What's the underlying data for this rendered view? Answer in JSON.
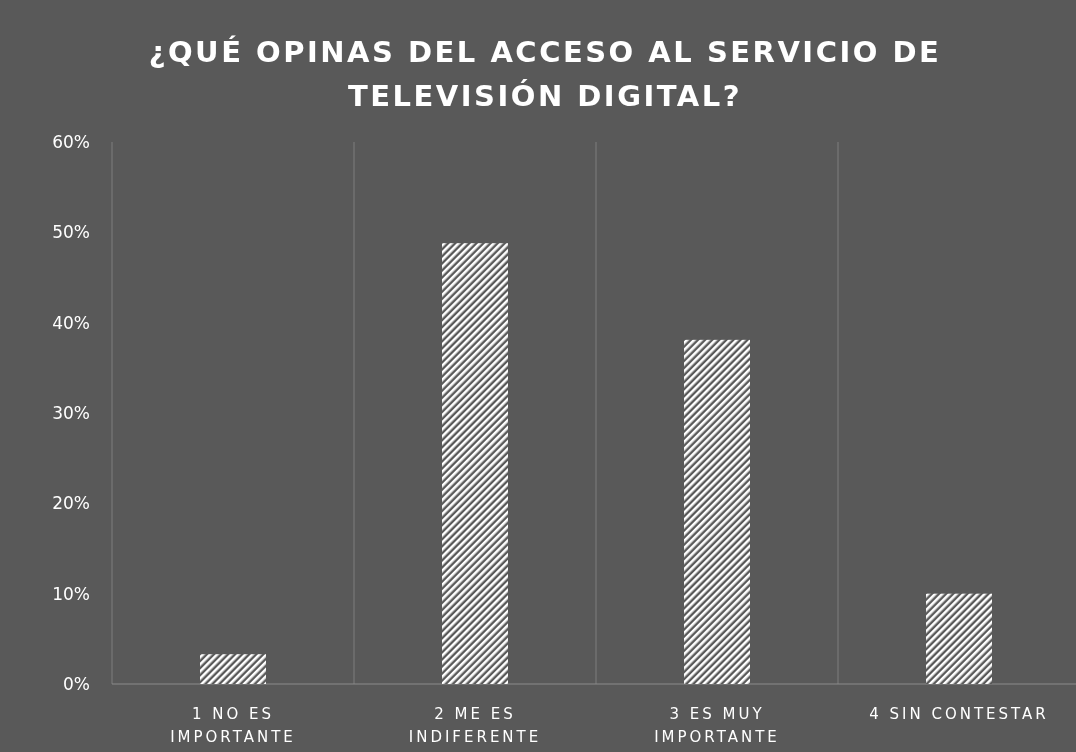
{
  "chart_data": {
    "type": "bar",
    "title": "¿QUÉ OPINAS DEL  ACCESO AL SERVICIO DE TELEVISIÓN DIGITAL?",
    "categories": [
      "1 NO ES IMPORTANTE",
      "2 ME ES INDIFERENTE",
      "3 ES MUY IMPORTANTE",
      "4 SIN CONTESTAR"
    ],
    "values": [
      3.3,
      48.8,
      38.1,
      10
    ],
    "color": "#ffffff",
    "ylim": [
      0,
      60
    ],
    "yticks": [
      {
        "value": 0,
        "label": "0%"
      },
      {
        "value": 10,
        "label": "10%"
      },
      {
        "value": 20,
        "label": "20%"
      },
      {
        "value": 30,
        "label": "30%"
      },
      {
        "value": 40,
        "label": "40%"
      },
      {
        "value": 50,
        "label": "50%"
      },
      {
        "value": 60,
        "label": "60%"
      }
    ],
    "grid": "x"
  }
}
